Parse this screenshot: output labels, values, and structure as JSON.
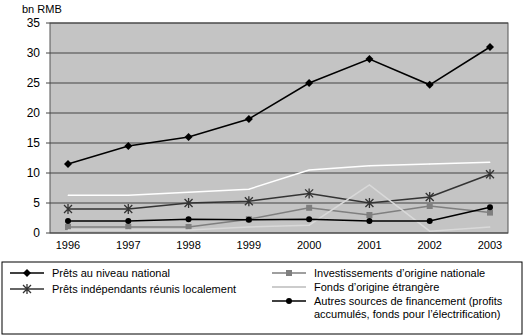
{
  "chart_data": {
    "type": "line",
    "y_label": "bn RMB",
    "categories": [
      "1996",
      "1997",
      "1998",
      "1999",
      "2000",
      "2001",
      "2002",
      "2003"
    ],
    "ylim": [
      0,
      35
    ],
    "yticks": [
      0,
      5,
      10,
      15,
      20,
      25,
      30,
      35
    ],
    "grid": true,
    "legend": "bottom",
    "series": [
      {
        "name": "Prêts au niveau national",
        "color": "#000000",
        "marker": "diamond",
        "values": [
          11.5,
          14.5,
          16,
          19,
          25,
          29,
          24.7,
          31
        ]
      },
      {
        "name": "Investissements d’origine nationale",
        "color": "#7f7f7f",
        "marker": "square",
        "values": [
          1,
          1,
          1,
          2.3,
          4.2,
          3,
          4.5,
          3.4
        ]
      },
      {
        "name": "Prêts indépendants réunis localement",
        "color": "#333333",
        "marker": "star",
        "values": [
          4,
          4,
          5,
          5.3,
          6.6,
          5,
          6,
          9.8
        ]
      },
      {
        "name": "Fonds d’origine étrangère",
        "color": "#d9d9d9",
        "marker": "none",
        "values": [
          0.5,
          0.5,
          0.5,
          1,
          1.3,
          8,
          0.3,
          1
        ]
      },
      {
        "name": "Autres sources de financement (profits accumulés, fonds pour l’électrification)",
        "color": "#000000",
        "marker": "circle",
        "values": [
          2,
          2,
          2.3,
          2.2,
          2.3,
          2,
          2,
          4.3
        ]
      },
      {
        "color": "#ffffff",
        "marker": "none",
        "values": [
          6.3,
          6.3,
          6.8,
          7.3,
          10.5,
          11.2,
          11.5,
          11.8
        ]
      }
    ]
  }
}
